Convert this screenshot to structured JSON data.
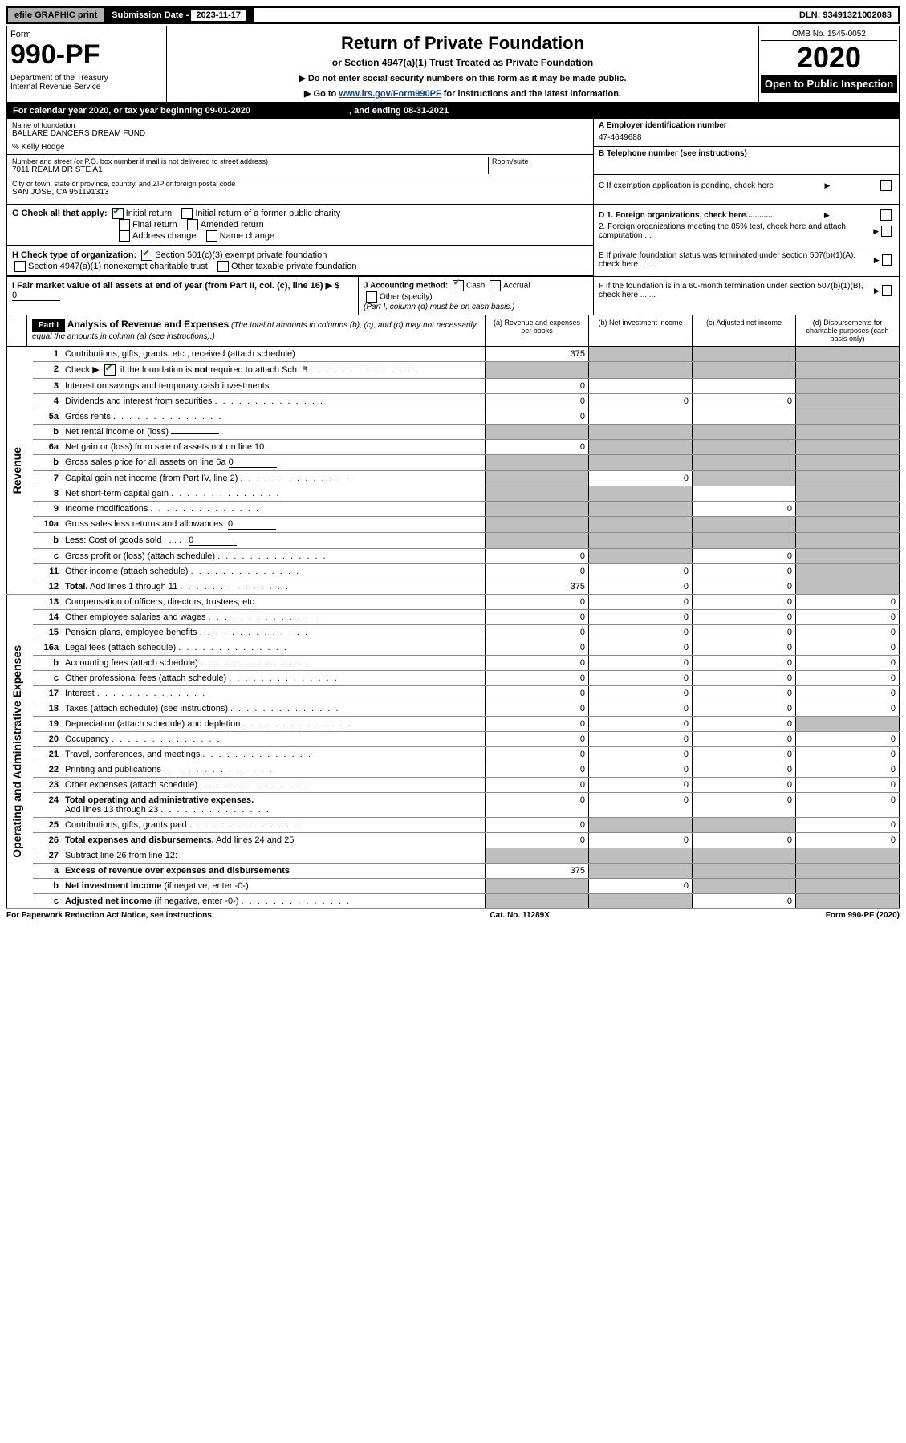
{
  "top": {
    "efile": "efile GRAPHIC print",
    "sub_label": "Submission Date - ",
    "sub_date": "2023-11-17",
    "dln": "DLN: 93491321002083"
  },
  "header": {
    "form": "Form",
    "form_num": "990-PF",
    "dept": "Department of the Treasury",
    "irs": "Internal Revenue Service",
    "title": "Return of Private Foundation",
    "subtitle": "or Section 4947(a)(1) Trust Treated as Private Foundation",
    "note1": "▶ Do not enter social security numbers on this form as it may be made public.",
    "note2_pre": "▶ Go to ",
    "note2_link": "www.irs.gov/Form990PF",
    "note2_post": " for instructions and the latest information.",
    "omb": "OMB No. 1545-0052",
    "year": "2020",
    "open": "Open to Public Inspection"
  },
  "cal": {
    "text_pre": "For calendar year 2020, or tax year beginning ",
    "begin": "09-01-2020",
    "mid": " , and ending ",
    "end": "08-31-2021"
  },
  "entity": {
    "name_lbl": "Name of foundation",
    "name": "BALLARE DANCERS DREAM FUND",
    "co": "% Kelly Hodge",
    "addr_lbl": "Number and street (or P.O. box number if mail is not delivered to street address)",
    "addr": "7011 REALM DR STE A1",
    "room_lbl": "Room/suite",
    "city_lbl": "City or town, state or province, country, and ZIP or foreign postal code",
    "city": "SAN JOSE, CA  951191313",
    "a_lbl": "A Employer identification number",
    "ein": "47-4649688",
    "b_lbl": "B Telephone number (see instructions)",
    "c_lbl": "C If exemption application is pending, check here"
  },
  "g": {
    "lbl": "G Check all that apply:",
    "opts": [
      "Initial return",
      "Initial return of a former public charity",
      "Final return",
      "Amended return",
      "Address change",
      "Name change"
    ]
  },
  "h": {
    "lbl": "H Check type of organization:",
    "o1": "Section 501(c)(3) exempt private foundation",
    "o2": "Section 4947(a)(1) nonexempt charitable trust",
    "o3": "Other taxable private foundation"
  },
  "i": {
    "lbl": "I Fair market value of all assets at end of year (from Part II, col. (c), line 16) ▶ $",
    "val": "0",
    "j_lbl": "J Accounting method:",
    "j_o1": "Cash",
    "j_o2": "Accrual",
    "j_o3": "Other (specify)",
    "j_note": "(Part I, column (d) must be on cash basis.)"
  },
  "right_opts": {
    "d1": "D 1. Foreign organizations, check here............",
    "d2": "2. Foreign organizations meeting the 85% test, check here and attach computation ...",
    "e": "E  If private foundation status was terminated under section 507(b)(1)(A), check here .......",
    "f": "F  If the foundation is in a 60-month termination under section 507(b)(1)(B), check here ......."
  },
  "part1": {
    "hdr": "Part I",
    "title": "Analysis of Revenue and Expenses",
    "title_note": " (The total of amounts in columns (b), (c), and (d) may not necessarily equal the amounts in column (a) (see instructions).)",
    "col_a": "(a) Revenue and expenses per books",
    "col_b": "(b) Net investment income",
    "col_c": "(c) Adjusted net income",
    "col_d": "(d) Disbursements for charitable purposes (cash basis only)"
  },
  "side": {
    "rev": "Revenue",
    "exp": "Operating and Administrative Expenses"
  },
  "rows": [
    {
      "n": "1",
      "d": "",
      "a": "375",
      "b": "",
      "c": "",
      "sb": true,
      "sc": true,
      "sd": true
    },
    {
      "n": "2",
      "d": "",
      "a": "",
      "b": "",
      "c": "",
      "sa": true,
      "sb": true,
      "sc": true,
      "sd": true
    },
    {
      "n": "3",
      "d": "",
      "a": "0",
      "b": "",
      "c": "",
      "sd": true
    },
    {
      "n": "4",
      "d": "",
      "a": "0",
      "b": "0",
      "c": "0",
      "sd": true,
      "dots": true
    },
    {
      "n": "5a",
      "d": "",
      "a": "0",
      "b": "",
      "c": "",
      "sd": true,
      "dots": true
    },
    {
      "n": "b",
      "d": "",
      "a": "",
      "b": "",
      "c": "",
      "sa": true,
      "sb": true,
      "sc": true,
      "sd": true
    },
    {
      "n": "6a",
      "d": "",
      "a": "0",
      "b": "",
      "c": "",
      "sb": true,
      "sc": true,
      "sd": true
    },
    {
      "n": "b",
      "d": "",
      "a": "",
      "b": "",
      "c": "",
      "sa": true,
      "sb": true,
      "sc": true,
      "sd": true
    },
    {
      "n": "7",
      "d": "",
      "a": "",
      "b": "0",
      "c": "",
      "sa": true,
      "sc": true,
      "sd": true,
      "dots": true
    },
    {
      "n": "8",
      "d": "",
      "a": "",
      "b": "",
      "c": "",
      "sa": true,
      "sb": true,
      "sd": true,
      "dots": true
    },
    {
      "n": "9",
      "d": "",
      "a": "",
      "b": "",
      "c": "0",
      "sa": true,
      "sb": true,
      "sd": true,
      "dots": true
    },
    {
      "n": "10a",
      "d": "",
      "a": "",
      "b": "",
      "c": "",
      "sa": true,
      "sb": true,
      "sc": true,
      "sd": true
    },
    {
      "n": "b",
      "d": "",
      "a": "",
      "b": "",
      "c": "",
      "sa": true,
      "sb": true,
      "sc": true,
      "sd": true
    },
    {
      "n": "c",
      "d": "",
      "a": "0",
      "b": "",
      "c": "0",
      "sb": true,
      "sd": true,
      "dots": true
    },
    {
      "n": "11",
      "d": "",
      "a": "0",
      "b": "0",
      "c": "0",
      "sd": true,
      "dots": true
    },
    {
      "n": "12",
      "d": "",
      "a": "375",
      "b": "0",
      "c": "0",
      "sd": true,
      "dots": true
    },
    {
      "n": "13",
      "d": "0",
      "a": "0",
      "b": "0",
      "c": "0"
    },
    {
      "n": "14",
      "d": "0",
      "a": "0",
      "b": "0",
      "c": "0",
      "dots": true
    },
    {
      "n": "15",
      "d": "0",
      "a": "0",
      "b": "0",
      "c": "0",
      "dots": true
    },
    {
      "n": "16a",
      "d": "0",
      "a": "0",
      "b": "0",
      "c": "0",
      "dots": true
    },
    {
      "n": "b",
      "d": "0",
      "a": "0",
      "b": "0",
      "c": "0",
      "dots": true
    },
    {
      "n": "c",
      "d": "0",
      "a": "0",
      "b": "0",
      "c": "0",
      "dots": true
    },
    {
      "n": "17",
      "d": "0",
      "a": "0",
      "b": "0",
      "c": "0",
      "dots": true
    },
    {
      "n": "18",
      "d": "0",
      "a": "0",
      "b": "0",
      "c": "0",
      "dots": true
    },
    {
      "n": "19",
      "d": "",
      "a": "0",
      "b": "0",
      "c": "0",
      "sd": true,
      "dots": true
    },
    {
      "n": "20",
      "d": "0",
      "a": "0",
      "b": "0",
      "c": "0",
      "dots": true
    },
    {
      "n": "21",
      "d": "0",
      "a": "0",
      "b": "0",
      "c": "0",
      "dots": true
    },
    {
      "n": "22",
      "d": "0",
      "a": "0",
      "b": "0",
      "c": "0",
      "dots": true
    },
    {
      "n": "23",
      "d": "0",
      "a": "0",
      "b": "0",
      "c": "0",
      "dots": true
    },
    {
      "n": "24",
      "d": "0",
      "a": "0",
      "b": "0",
      "c": "0",
      "dots": true
    },
    {
      "n": "25",
      "d": "0",
      "a": "0",
      "b": "",
      "c": "",
      "sb": true,
      "sc": true,
      "dots": true
    },
    {
      "n": "26",
      "d": "0",
      "a": "0",
      "b": "0",
      "c": "0"
    },
    {
      "n": "27",
      "d": "",
      "a": "",
      "b": "",
      "c": "",
      "sa": true,
      "sb": true,
      "sc": true,
      "sd": true
    },
    {
      "n": "a",
      "d": "",
      "a": "375",
      "b": "",
      "c": "",
      "sb": true,
      "sc": true,
      "sd": true
    },
    {
      "n": "b",
      "d": "",
      "a": "",
      "b": "0",
      "c": "",
      "sa": true,
      "sc": true,
      "sd": true
    },
    {
      "n": "c",
      "d": "",
      "a": "",
      "b": "",
      "c": "0",
      "sa": true,
      "sb": true,
      "sd": true,
      "dots": true
    }
  ],
  "footer": {
    "left": "For Paperwork Reduction Act Notice, see instructions.",
    "mid": "Cat. No. 11289X",
    "right": "Form 990-PF (2020)"
  }
}
